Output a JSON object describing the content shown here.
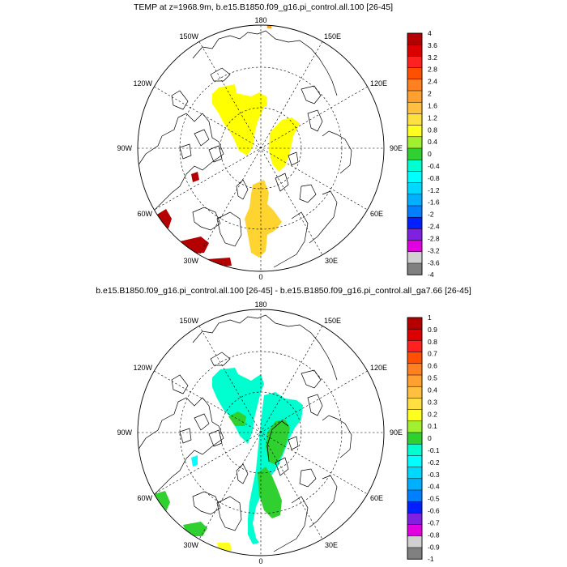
{
  "panels": [
    {
      "title": "TEMP at z=1968.9m, b.e15.B1850.f09_g16.pi_control.all.100 [26-45]",
      "lon_labels": {
        "top": "180",
        "bottom": "0",
        "left": "90W",
        "right": "90E",
        "ul": "150W",
        "ur": "150E",
        "ml": "120W",
        "mr": "120E",
        "ll": "60W",
        "lr": "60E",
        "bl": "30W",
        "br": "30E"
      },
      "colorbar": {
        "labels": [
          "4",
          "3.6",
          "3.2",
          "2.8",
          "2.4",
          "2",
          "1.6",
          "1.2",
          "0.8",
          "0.4",
          "0",
          "-0.4",
          "-0.8",
          "-1.2",
          "-1.6",
          "-2",
          "-2.4",
          "-2.8",
          "-3.2",
          "-3.6",
          "-4"
        ],
        "colors": [
          "#b40000",
          "#dc0000",
          "#ff2020",
          "#ff5000",
          "#ff8020",
          "#ffa030",
          "#ffc040",
          "#ffe040",
          "#ffff20",
          "#a0f030",
          "#30d030",
          "#00ffd0",
          "#00ffff",
          "#00d8ff",
          "#00b0ff",
          "#0080ff",
          "#0020ff",
          "#8020e0",
          "#e000e0",
          "#d0d0d0",
          "#808080"
        ]
      }
    },
    {
      "title": "b.e15.B1850.f09_g16.pi_control.all.100 [26-45] - b.e15.B1850.f09_g16.pi_control.all_ga7.66 [26-45]",
      "lon_labels": {
        "top": "180",
        "bottom": "0",
        "left": "90W",
        "right": "90E",
        "ul": "150W",
        "ur": "150E",
        "ml": "120W",
        "mr": "120E",
        "ll": "60W",
        "lr": "60E",
        "bl": "30W",
        "br": "30E"
      },
      "colorbar": {
        "labels": [
          "1",
          "0.9",
          "0.8",
          "0.7",
          "0.6",
          "0.5",
          "0.4",
          "0.3",
          "0.2",
          "0.1",
          "0",
          "-0.1",
          "-0.2",
          "-0.3",
          "-0.4",
          "-0.5",
          "-0.6",
          "-0.7",
          "-0.8",
          "-0.9",
          "-1"
        ],
        "colors": [
          "#b40000",
          "#dc0000",
          "#ff2020",
          "#ff5000",
          "#ff8020",
          "#ffa030",
          "#ffc040",
          "#ffe040",
          "#ffff20",
          "#a0f030",
          "#30d030",
          "#00ffd0",
          "#00ffff",
          "#00d8ff",
          "#00b0ff",
          "#0080ff",
          "#0020ff",
          "#8020e0",
          "#e000e0",
          "#d0d0d0",
          "#808080"
        ]
      }
    }
  ]
}
